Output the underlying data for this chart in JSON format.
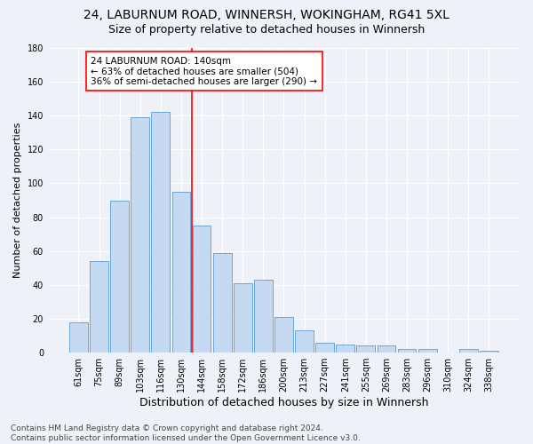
{
  "title1": "24, LABURNUM ROAD, WINNERSH, WOKINGHAM, RG41 5XL",
  "title2": "Size of property relative to detached houses in Winnersh",
  "xlabel": "Distribution of detached houses by size in Winnersh",
  "ylabel": "Number of detached properties",
  "categories": [
    "61sqm",
    "75sqm",
    "89sqm",
    "103sqm",
    "116sqm",
    "130sqm",
    "144sqm",
    "158sqm",
    "172sqm",
    "186sqm",
    "200sqm",
    "213sqm",
    "227sqm",
    "241sqm",
    "255sqm",
    "269sqm",
    "283sqm",
    "296sqm",
    "310sqm",
    "324sqm",
    "338sqm"
  ],
  "values": [
    18,
    54,
    90,
    139,
    142,
    95,
    75,
    59,
    41,
    43,
    21,
    13,
    6,
    5,
    4,
    4,
    2,
    2,
    0,
    2,
    1
  ],
  "bar_color": "#c5d9f0",
  "bar_edge_color": "#5b9bd5",
  "vline_x": 5.5,
  "vline_color": "red",
  "annotation_line1": "24 LABURNUM ROAD: 140sqm",
  "annotation_line2": "← 63% of detached houses are smaller (504)",
  "annotation_line3": "36% of semi-detached houses are larger (290) →",
  "annotation_box_color": "white",
  "annotation_box_edge_color": "red",
  "ylim": [
    0,
    180
  ],
  "yticks": [
    0,
    20,
    40,
    60,
    80,
    100,
    120,
    140,
    160,
    180
  ],
  "footer": "Contains HM Land Registry data © Crown copyright and database right 2024.\nContains public sector information licensed under the Open Government Licence v3.0.",
  "background_color": "#eef2f8",
  "grid_color": "white",
  "title_fontsize": 10,
  "subtitle_fontsize": 9,
  "tick_fontsize": 7,
  "xlabel_fontsize": 9,
  "ylabel_fontsize": 8,
  "annotation_fontsize": 7.5,
  "footer_fontsize": 6.5
}
